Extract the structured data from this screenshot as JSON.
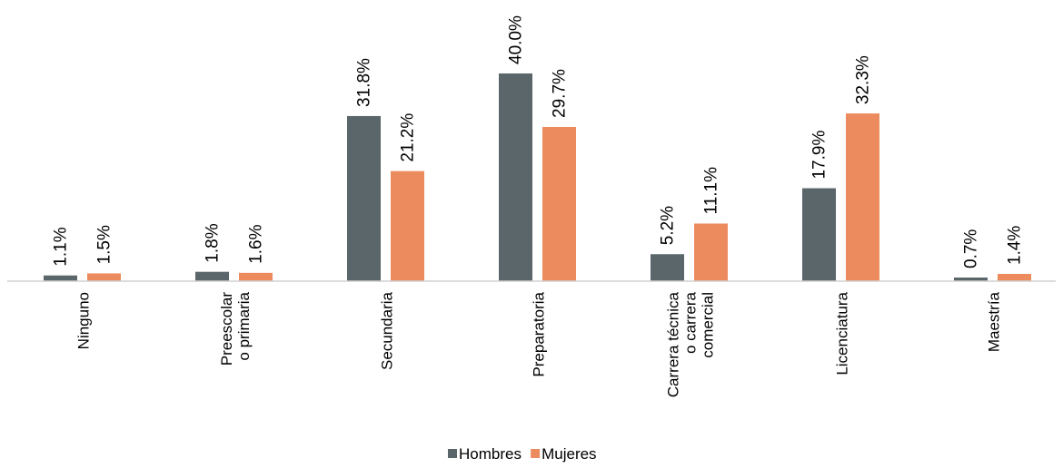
{
  "chart_data": {
    "type": "bar",
    "categories": [
      [
        "Ninguno"
      ],
      [
        "Preescolar",
        "o primaria"
      ],
      [
        "Secundaria"
      ],
      [
        "Preparatoria"
      ],
      [
        "Carrera técnica",
        "o carrera",
        "comercial"
      ],
      [
        "Licenciatura"
      ],
      [
        "Maestría"
      ]
    ],
    "series": [
      {
        "name": "Hombres",
        "color": "#5b666b",
        "values": [
          1.1,
          1.8,
          31.8,
          40.0,
          5.2,
          17.9,
          0.7
        ],
        "labels": [
          "1.1%",
          "1.8%",
          "31.8%",
          "40.0%",
          "5.2%",
          "17.9%",
          "0.7%"
        ]
      },
      {
        "name": "Mujeres",
        "color": "#ec8c5e",
        "values": [
          1.5,
          1.6,
          21.2,
          29.7,
          11.1,
          32.3,
          1.4
        ],
        "labels": [
          "1.5%",
          "1.6%",
          "21.2%",
          "29.7%",
          "11.1%",
          "32.3%",
          "1.4%"
        ]
      }
    ],
    "ylim": [
      0,
      40
    ],
    "grid": false,
    "legend_position": "bottom-center",
    "title": "",
    "xlabel": "",
    "ylabel": ""
  }
}
